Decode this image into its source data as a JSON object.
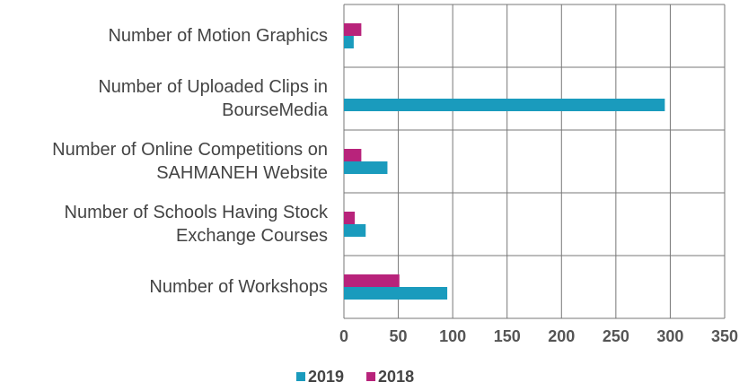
{
  "chart_data": {
    "type": "barh",
    "categories": [
      "Number of Motion Graphics",
      "Number of Uploaded Clips in BourseMedia",
      "Number of Online Competitions on SAHMANEH Website",
      "Number of Schools Having Stock Exchange Courses",
      "Number of Workshops"
    ],
    "series": [
      {
        "name": "2019",
        "color": "#1a9bbd",
        "values": [
          9,
          295,
          40,
          20,
          95
        ]
      },
      {
        "name": "2018",
        "color": "#b8237b",
        "values": [
          16,
          0,
          16,
          10,
          51
        ]
      }
    ],
    "xlim": [
      0,
      350
    ],
    "xticks": [
      0,
      50,
      100,
      150,
      200,
      250,
      300,
      350
    ],
    "grid": true,
    "legend": "bottom"
  }
}
